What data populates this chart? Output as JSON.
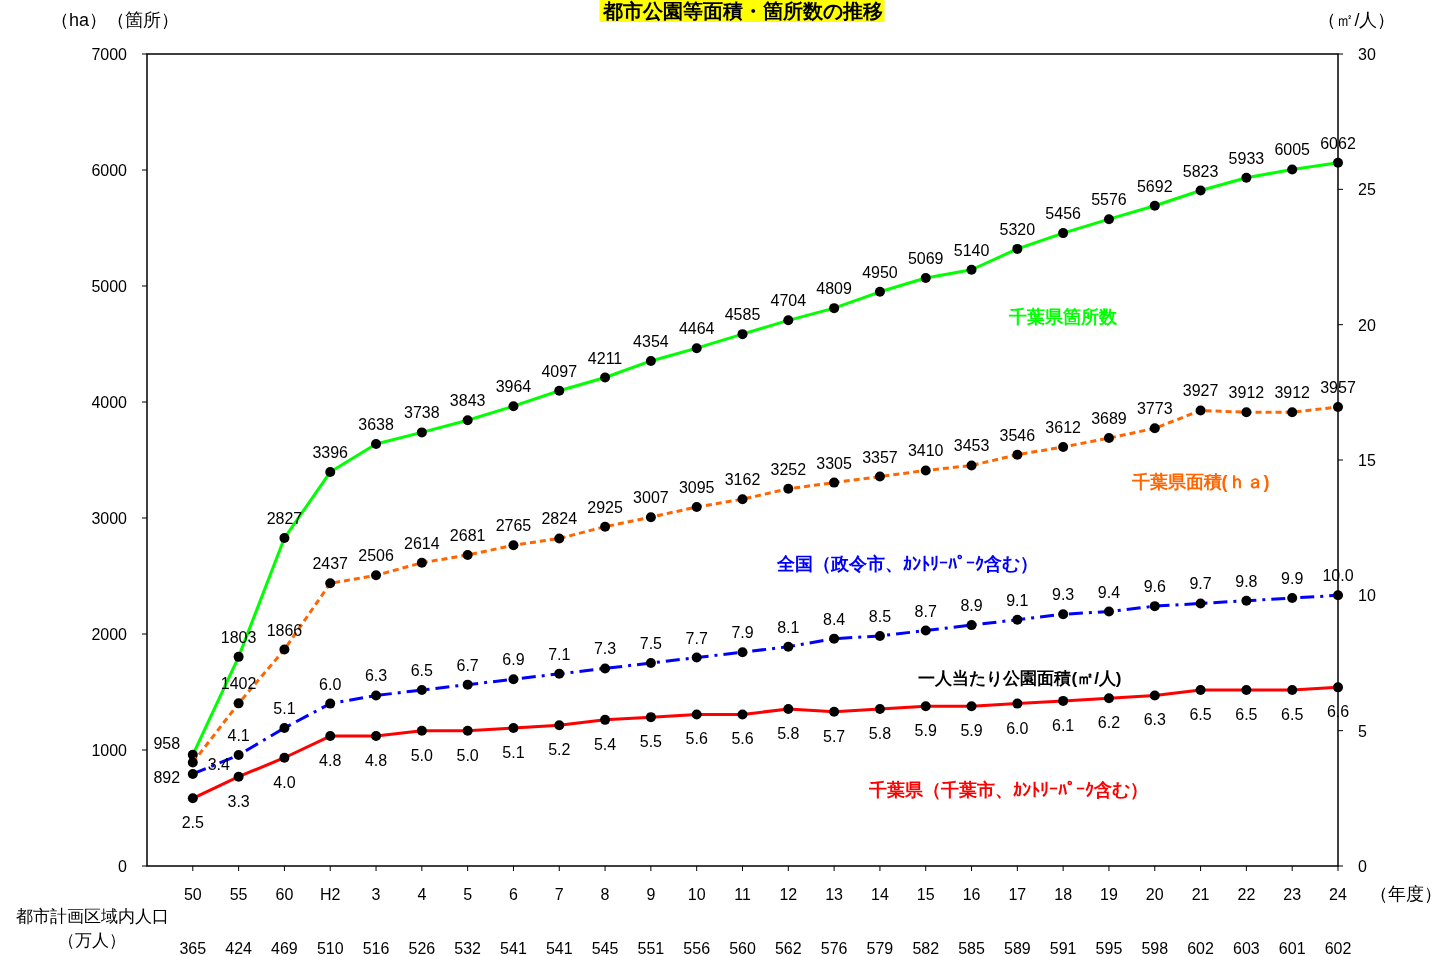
{
  "chart_data": {
    "type": "line",
    "title": "都市公園等面積・箇所数の推移",
    "ylabel": "（ha）（箇所）",
    "y2label": "（㎡/人）",
    "xlabel": "（年度）",
    "categories": [
      "50",
      "55",
      "60",
      "H2",
      "3",
      "4",
      "5",
      "6",
      "7",
      "8",
      "9",
      "10",
      "11",
      "12",
      "13",
      "14",
      "15",
      "16",
      "17",
      "18",
      "19",
      "20",
      "21",
      "22",
      "23",
      "24"
    ],
    "series": [
      {
        "name": "千葉県箇所数",
        "color": "#00ff00",
        "line_style": "solid",
        "values": [
          958,
          1803,
          2827,
          3396,
          3638,
          3738,
          3843,
          3964,
          4097,
          4211,
          4354,
          4464,
          4585,
          4704,
          4809,
          4950,
          5069,
          5140,
          5320,
          5456,
          5576,
          5692,
          5823,
          5933,
          6005,
          6062
        ]
      },
      {
        "name": "千葉県面積(ｈａ)",
        "color": "#ff6600",
        "line_style": "dotted",
        "values": [
          892,
          1402,
          1866,
          2437,
          2506,
          2614,
          2681,
          2765,
          2824,
          2925,
          3007,
          3095,
          3162,
          3252,
          3305,
          3357,
          3410,
          3453,
          3546,
          3612,
          3689,
          3773,
          3927,
          3912,
          3912,
          3957
        ]
      },
      {
        "name": "全国（政令市、ｶﾝﾄﾘｰﾊﾟｰｸ含む）",
        "color": "#0000ff",
        "line_style": "dashed",
        "axis": "y2",
        "values": [
          3.4,
          4.1,
          5.1,
          6.0,
          6.3,
          6.5,
          6.7,
          6.9,
          7.1,
          7.3,
          7.5,
          7.7,
          7.9,
          8.1,
          8.4,
          8.5,
          8.7,
          8.9,
          9.1,
          9.3,
          9.4,
          9.6,
          9.7,
          9.8,
          9.9,
          10.0
        ],
        "value_labels": [
          "3.4",
          "4.1",
          "5.1",
          "6.0",
          "6.3",
          "6.5",
          "6.7",
          "6.9",
          "7.1",
          "7.3",
          "7.5",
          "7.7",
          "7.9",
          "8.1",
          "8.4",
          "8.5",
          "8.7",
          "8.9",
          "9.1",
          "9.3",
          "9.4",
          "9.6",
          "9.7",
          "9.8",
          "9.9",
          "10.0"
        ]
      },
      {
        "name": "千葉県（千葉市、ｶﾝﾄﾘｰﾊﾟｰｸ含む）",
        "color": "#ff0000",
        "line_style": "solid",
        "axis": "y2",
        "values": [
          2.5,
          3.3,
          4.0,
          4.8,
          4.8,
          5.0,
          5.0,
          5.1,
          5.2,
          5.4,
          5.5,
          5.6,
          5.6,
          5.8,
          5.7,
          5.8,
          5.9,
          5.9,
          6.0,
          6.1,
          6.2,
          6.3,
          6.5,
          6.5,
          6.5,
          6.6
        ],
        "value_labels": [
          "2.5",
          "3.3",
          "4.0",
          "4.8",
          "4.8",
          "5.0",
          "5.0",
          "5.1",
          "5.2",
          "5.4",
          "5.5",
          "5.6",
          "5.6",
          "5.8",
          "5.7",
          "5.8",
          "5.9",
          "5.9",
          "6.0",
          "6.1",
          "6.2",
          "6.3",
          "6.5",
          "6.5",
          "6.5",
          "6.6"
        ]
      }
    ],
    "ylim": [
      0,
      7000
    ],
    "yticks": [
      0,
      1000,
      2000,
      3000,
      4000,
      5000,
      6000,
      7000
    ],
    "y2lim": [
      0,
      30
    ],
    "y2ticks": [
      0,
      5,
      10,
      15,
      20,
      25,
      30
    ],
    "marker": "circle",
    "data_labels": true,
    "grid": false,
    "annotations": [
      "一人当たり公園面積(㎡/人)",
      "都市計画区域内人口",
      "（万人）",
      "365",
      "424",
      "469",
      "510",
      "516",
      "526",
      "532",
      "541",
      "541",
      "545",
      "551",
      "556",
      "560",
      "562",
      "576",
      "579",
      "582",
      "585",
      "589",
      "591",
      "595",
      "598",
      "602",
      "603",
      "601",
      "602"
    ]
  }
}
